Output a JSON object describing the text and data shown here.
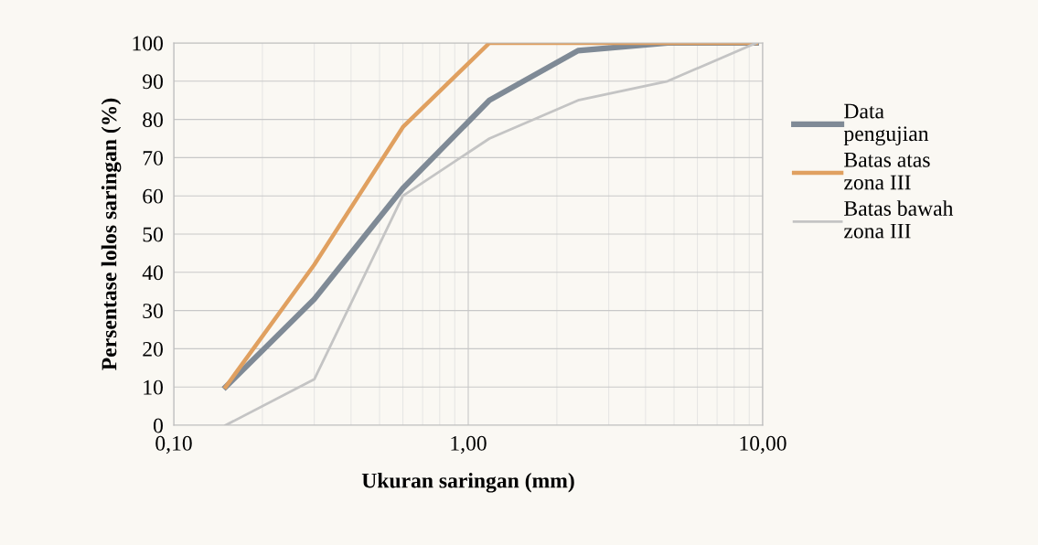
{
  "chart_data": {
    "type": "line",
    "xlabel": "Ukuran saringan (mm)",
    "ylabel": "Persentase lolos saringan (%)",
    "x": [
      0.15,
      0.3,
      0.6,
      1.18,
      2.36,
      4.75,
      9.5
    ],
    "series": [
      {
        "name": "Data\npengujian",
        "color": "#7f8a96",
        "values": [
          10,
          33,
          62,
          85,
          98,
          100,
          100
        ]
      },
      {
        "name": "Batas atas\nzona III",
        "color": "#e0a060",
        "values": [
          10,
          42,
          78,
          100,
          100,
          100,
          100
        ]
      },
      {
        "name": "Batas bawah\nzona III",
        "color": "#c4c4c4",
        "values": [
          0,
          12,
          60,
          75,
          85,
          90,
          100
        ]
      }
    ],
    "log": "x",
    "xlim": [
      0.1,
      10
    ],
    "xticks": [
      {
        "value": 0.1,
        "label": "0,10"
      },
      {
        "value": 1,
        "label": "1,00"
      },
      {
        "value": 10,
        "label": "10,00"
      }
    ],
    "ylim": [
      0,
      100
    ],
    "yticks": [
      0,
      10,
      20,
      30,
      40,
      50,
      60,
      70,
      80,
      90,
      100
    ],
    "grid": true,
    "legend": "right",
    "marker": "none",
    "line_style": "solid"
  }
}
